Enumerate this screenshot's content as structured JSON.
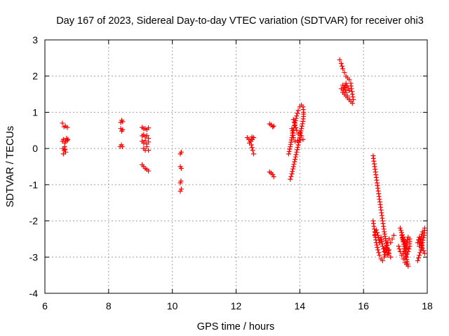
{
  "chart_data": {
    "type": "scatter",
    "title": "Day 167 of 2023, Sidereal Day-to-day VTEC variation (SDTVAR) for receiver ohi3",
    "xlabel": "GPS time / hours",
    "ylabel": "SDTVAR / TECUs",
    "xlim": [
      6,
      18
    ],
    "ylim": [
      -4,
      3
    ],
    "xticks": [
      6,
      8,
      10,
      12,
      14,
      16,
      18
    ],
    "yticks": [
      -4,
      -3,
      -2,
      -1,
      0,
      1,
      2,
      3
    ],
    "grid": true,
    "marker": "plus",
    "color": "#ff0000",
    "series": [
      {
        "name": "SDTVAR",
        "segments": [
          [
            [
              6.55,
              0.7
            ],
            [
              6.6,
              0.6
            ],
            [
              6.65,
              0.62
            ],
            [
              6.7,
              0.58
            ]
          ],
          [
            [
              6.55,
              0.2
            ],
            [
              6.58,
              0.25
            ],
            [
              6.62,
              0.15
            ],
            [
              6.65,
              0.2
            ],
            [
              6.68,
              0.28
            ],
            [
              6.7,
              0.22
            ],
            [
              6.72,
              0.25
            ]
          ],
          [
            [
              6.57,
              0.0
            ],
            [
              6.6,
              -0.05
            ],
            [
              6.62,
              0.05
            ],
            [
              6.65,
              -0.1
            ],
            [
              6.58,
              -0.15
            ]
          ],
          [
            [
              8.38,
              0.72
            ],
            [
              8.41,
              0.78
            ],
            [
              8.44,
              0.74
            ]
          ],
          [
            [
              8.38,
              0.55
            ],
            [
              8.41,
              0.48
            ],
            [
              8.44,
              0.52
            ]
          ],
          [
            [
              8.36,
              0.05
            ],
            [
              8.4,
              0.1
            ],
            [
              8.43,
              0.05
            ]
          ],
          [
            [
              9.05,
              0.58
            ],
            [
              9.1,
              0.55
            ],
            [
              9.15,
              0.55
            ],
            [
              9.2,
              0.52
            ],
            [
              9.25,
              0.57
            ]
          ],
          [
            [
              9.05,
              0.35
            ],
            [
              9.1,
              0.38
            ],
            [
              9.15,
              0.32
            ],
            [
              9.2,
              0.36
            ],
            [
              9.25,
              0.28
            ]
          ],
          [
            [
              9.05,
              0.2
            ],
            [
              9.1,
              0.15
            ],
            [
              9.15,
              0.22
            ],
            [
              9.2,
              0.12
            ],
            [
              9.25,
              0.18
            ]
          ],
          [
            [
              9.1,
              0.0
            ],
            [
              9.15,
              -0.05
            ],
            [
              9.2,
              0.05
            ],
            [
              9.25,
              -0.05
            ]
          ],
          [
            [
              9.05,
              -0.45
            ],
            [
              9.1,
              -0.5
            ],
            [
              9.15,
              -0.55
            ],
            [
              9.2,
              -0.58
            ],
            [
              9.25,
              -0.62
            ]
          ],
          [
            [
              10.28,
              -0.1
            ],
            [
              10.25,
              -0.15
            ]
          ],
          [
            [
              10.25,
              -0.5
            ],
            [
              10.28,
              -0.55
            ]
          ],
          [
            [
              10.27,
              -0.9
            ],
            [
              10.25,
              -0.95
            ]
          ],
          [
            [
              10.28,
              -1.12
            ],
            [
              10.25,
              -1.18
            ]
          ],
          [
            [
              12.35,
              0.3
            ],
            [
              12.4,
              0.25
            ],
            [
              12.45,
              0.2
            ],
            [
              12.5,
              0.32
            ],
            [
              12.55,
              0.3
            ],
            [
              12.42,
              0.15
            ],
            [
              12.48,
              0.1
            ],
            [
              12.52,
              -0.05
            ],
            [
              12.55,
              -0.15
            ]
          ],
          [
            [
              13.05,
              0.68
            ],
            [
              13.1,
              0.65
            ],
            [
              13.15,
              0.6
            ],
            [
              13.18,
              0.62
            ]
          ],
          [
            [
              13.05,
              -0.65
            ],
            [
              13.1,
              -0.68
            ],
            [
              13.15,
              -0.72
            ],
            [
              13.18,
              -0.78
            ]
          ],
          [
            [
              13.65,
              -0.15
            ],
            [
              13.7,
              0.05
            ],
            [
              13.75,
              0.3
            ],
            [
              13.8,
              0.5
            ],
            [
              13.85,
              0.7
            ],
            [
              13.9,
              0.9
            ],
            [
              13.95,
              1.05
            ],
            [
              14.0,
              1.15
            ],
            [
              14.05,
              1.2
            ],
            [
              14.1,
              1.15
            ],
            [
              14.12,
              1.0
            ]
          ],
          [
            [
              14.12,
              0.95
            ],
            [
              14.1,
              0.75
            ],
            [
              14.05,
              0.55
            ],
            [
              14.0,
              0.3
            ],
            [
              13.95,
              0.1
            ],
            [
              13.9,
              -0.1
            ],
            [
              13.85,
              -0.3
            ],
            [
              13.8,
              -0.5
            ],
            [
              13.75,
              -0.7
            ],
            [
              13.7,
              -0.85
            ]
          ],
          [
            [
              13.8,
              0.8
            ],
            [
              13.85,
              0.65
            ],
            [
              13.9,
              0.5
            ],
            [
              13.95,
              0.4
            ],
            [
              14.0,
              0.45
            ],
            [
              14.05,
              0.35
            ],
            [
              14.1,
              0.25
            ],
            [
              13.85,
              0.2
            ],
            [
              13.8,
              0.3
            ],
            [
              13.75,
              0.55
            ]
          ],
          [
            [
              15.25,
              2.45
            ],
            [
              15.3,
              2.35
            ],
            [
              15.35,
              2.2
            ],
            [
              15.4,
              2.1
            ],
            [
              15.45,
              2.0
            ],
            [
              15.5,
              1.95
            ],
            [
              15.55,
              1.9
            ],
            [
              15.6,
              1.8
            ],
            [
              15.62,
              1.65
            ],
            [
              15.65,
              1.5
            ],
            [
              15.68,
              1.35
            ],
            [
              15.65,
              1.25
            ]
          ],
          [
            [
              15.3,
              1.65
            ],
            [
              15.35,
              1.75
            ],
            [
              15.4,
              1.7
            ],
            [
              15.45,
              1.55
            ],
            [
              15.5,
              1.45
            ],
            [
              15.55,
              1.35
            ],
            [
              15.6,
              1.3
            ],
            [
              15.35,
              1.55
            ],
            [
              15.45,
              1.8
            ],
            [
              15.55,
              1.6
            ]
          ],
          [
            [
              16.3,
              -0.2
            ],
            [
              16.35,
              -0.5
            ],
            [
              16.4,
              -0.8
            ],
            [
              16.45,
              -1.1
            ],
            [
              16.5,
              -1.4
            ],
            [
              16.55,
              -1.7
            ],
            [
              16.6,
              -2.0
            ],
            [
              16.65,
              -2.3
            ],
            [
              16.7,
              -2.55
            ],
            [
              16.75,
              -2.75
            ],
            [
              16.8,
              -2.9
            ],
            [
              16.85,
              -3.0
            ]
          ],
          [
            [
              16.3,
              -2.0
            ],
            [
              16.35,
              -2.3
            ],
            [
              16.4,
              -2.6
            ],
            [
              16.45,
              -2.8
            ],
            [
              16.5,
              -2.95
            ],
            [
              16.55,
              -3.05
            ],
            [
              16.6,
              -3.1
            ],
            [
              16.65,
              -3.0
            ],
            [
              16.7,
              -2.8
            ],
            [
              16.75,
              -2.6
            ],
            [
              16.8,
              -2.5
            ],
            [
              16.85,
              -2.6
            ],
            [
              16.9,
              -2.5
            ],
            [
              16.95,
              -2.4
            ]
          ],
          [
            [
              16.35,
              -2.4
            ],
            [
              16.4,
              -2.25
            ],
            [
              16.45,
              -2.4
            ],
            [
              16.5,
              -2.6
            ],
            [
              16.55,
              -2.45
            ],
            [
              16.6,
              -2.7
            ],
            [
              16.65,
              -2.85
            ],
            [
              16.7,
              -2.75
            ],
            [
              16.75,
              -2.95
            ],
            [
              16.8,
              -2.8
            ]
          ],
          [
            [
              17.1,
              -2.7
            ],
            [
              17.15,
              -2.85
            ],
            [
              17.2,
              -2.95
            ],
            [
              17.25,
              -3.05
            ],
            [
              17.3,
              -3.15
            ],
            [
              17.35,
              -3.2
            ],
            [
              17.4,
              -3.25
            ],
            [
              17.2,
              -2.4
            ],
            [
              17.25,
              -2.55
            ],
            [
              17.3,
              -2.65
            ],
            [
              17.35,
              -2.75
            ],
            [
              17.15,
              -2.2
            ]
          ],
          [
            [
              17.25,
              -2.9
            ],
            [
              17.3,
              -2.85
            ],
            [
              17.35,
              -2.6
            ],
            [
              17.4,
              -2.45
            ],
            [
              17.45,
              -2.5
            ],
            [
              17.45,
              -2.7
            ],
            [
              17.4,
              -2.85
            ],
            [
              17.3,
              -3.05
            ]
          ],
          [
            [
              17.7,
              -3.1
            ],
            [
              17.75,
              -2.95
            ],
            [
              17.8,
              -2.8
            ],
            [
              17.85,
              -2.6
            ],
            [
              17.9,
              -2.4
            ],
            [
              17.92,
              -2.2
            ],
            [
              17.85,
              -2.3
            ],
            [
              17.8,
              -2.5
            ],
            [
              17.75,
              -2.7
            ],
            [
              17.7,
              -2.6
            ],
            [
              17.75,
              -2.45
            ],
            [
              17.85,
              -2.75
            ],
            [
              17.92,
              -2.9
            ]
          ]
        ]
      }
    ]
  }
}
